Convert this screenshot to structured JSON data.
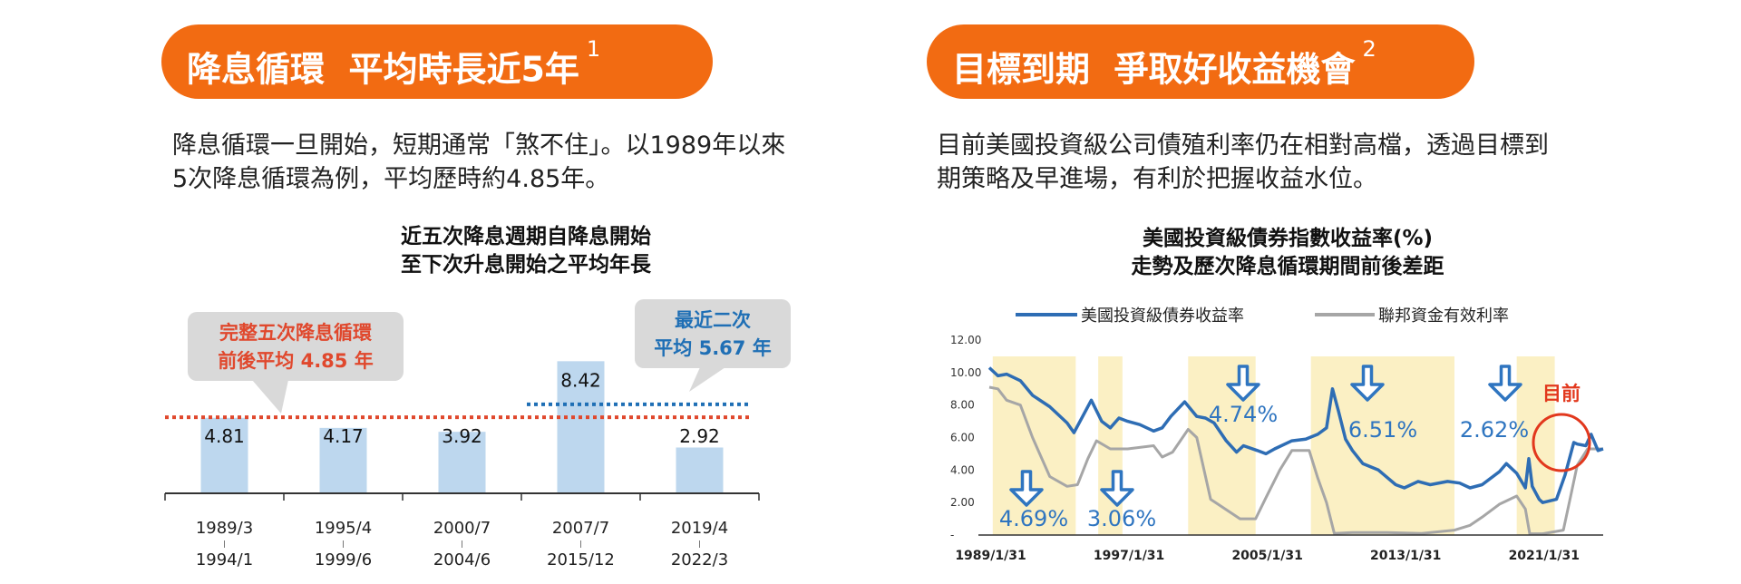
{
  "left": {
    "header_title": "降息循環  平均時長近5年",
    "header_footnote": "1",
    "paragraph_line1": "降息循環一旦開始，短期通常「煞不住」。以1989年以來",
    "paragraph_line2": "5次降息循環為例，平均歷時約4.85年。",
    "chart_title_line1": "近五次降息週期自降息開始",
    "chart_title_line2": "至下次升息開始之平均年長",
    "callout_left_line1": "完整五次降息循環",
    "callout_left_line2": "前後平均 4.85 年",
    "callout_right_line1": "最近二次",
    "callout_right_line2": "平均 5.67 年"
  },
  "right": {
    "header_title": "目標到期  爭取好收益機會",
    "header_footnote": "2",
    "paragraph_line1": "目前美國投資級公司債殖利率仍在相對高檔，透過目標到",
    "paragraph_line2": "期策略及早進場，有利於把握收益水位。",
    "chart_title_line1": "美國投資級債券指數收益率(%)",
    "chart_title_line2": "走勢及歷次降息循環期間前後差距",
    "now_label": "目前"
  },
  "colors": {
    "orange": "#f26b12",
    "bar": "#bdd7ee",
    "avg_red": "#e0482d",
    "avg_blue": "#1f6fb5",
    "ig_line": "#2e6db4",
    "ff_line": "#a6a6a6",
    "shade": "#fbf0c4",
    "arrow": "#2f75c0",
    "circle": "#e2381d"
  },
  "chart_data": [
    {
      "type": "bar",
      "title": "近五次降息週期自降息開始至下次升息開始之平均年長",
      "categories": [
        [
          "1989/3",
          "1994/1"
        ],
        [
          "1995/4",
          "1999/6"
        ],
        [
          "2000/7",
          "2004/6"
        ],
        [
          "2007/7",
          "2015/12"
        ],
        [
          "2019/4",
          "2022/3"
        ]
      ],
      "values": [
        4.81,
        4.17,
        3.92,
        8.42,
        2.92
      ],
      "value_labels": [
        "4.81",
        "4.17",
        "3.92",
        "8.42",
        "2.92"
      ],
      "ylim": [
        0,
        10
      ],
      "reference_lines": [
        {
          "name": "完整五次降息循環前後平均",
          "value": 4.85,
          "span": "all"
        },
        {
          "name": "最近二次平均",
          "value": 5.67,
          "span": "last-two"
        }
      ]
    },
    {
      "type": "line",
      "title": "美國投資級債券指數收益率(%)走勢及歷次降息循環期間前後差距",
      "legend_position": "top",
      "y_ticks": [
        "12.00",
        "10.00",
        "8.00",
        "6.00",
        "4.00",
        "2.00",
        "-"
      ],
      "ylim": [
        0,
        12
      ],
      "x_ticks": [
        "1989/1/31",
        "1997/1/31",
        "2005/1/31",
        "2013/1/31",
        "2021/1/31"
      ],
      "xlim": [
        1989.0,
        2024.5
      ],
      "series": [
        {
          "name": "美國投資級債券收益率",
          "x": [
            1989.0,
            1989.5,
            1990.0,
            1990.8,
            1991.5,
            1992.5,
            1993.5,
            1993.9,
            1994.5,
            1994.9,
            1995.5,
            1996.0,
            1996.5,
            1997.0,
            1997.7,
            1998.5,
            1999.0,
            1999.5,
            2000.3,
            2001.0,
            2001.5,
            2002.0,
            2002.7,
            2003.3,
            2003.7,
            2004.5,
            2005.0,
            2005.5,
            2006.5,
            2007.3,
            2008.0,
            2008.5,
            2008.85,
            2009.2,
            2009.6,
            2010.0,
            2010.6,
            2011.5,
            2012.5,
            2013.0,
            2013.8,
            2014.5,
            2015.5,
            2016.2,
            2016.8,
            2017.5,
            2018.5,
            2018.9,
            2019.5,
            2020.0,
            2020.2,
            2020.4,
            2020.8,
            2021.0,
            2021.8,
            2022.3,
            2022.8,
            2023.0,
            2023.5,
            2023.8,
            2024.2,
            2024.5
          ],
          "y": [
            10.3,
            9.8,
            9.9,
            9.5,
            8.6,
            7.9,
            6.9,
            6.3,
            7.5,
            8.3,
            7.0,
            6.6,
            7.2,
            7.0,
            6.8,
            6.4,
            6.6,
            7.3,
            8.2,
            7.3,
            7.2,
            6.9,
            5.8,
            5.1,
            5.5,
            5.2,
            5.0,
            5.3,
            5.8,
            5.9,
            6.2,
            6.6,
            9.0,
            7.6,
            5.9,
            5.2,
            4.4,
            4.0,
            3.1,
            2.9,
            3.3,
            3.1,
            3.3,
            3.2,
            2.9,
            3.1,
            3.9,
            4.4,
            3.8,
            2.9,
            4.7,
            3.0,
            2.2,
            2.0,
            2.2,
            3.7,
            5.7,
            5.6,
            5.5,
            6.2,
            5.2,
            5.3
          ]
        },
        {
          "name": "聯邦資金有效利率",
          "x": [
            1989.0,
            1989.5,
            1990.0,
            1990.8,
            1991.5,
            1992.5,
            1993.5,
            1994.1,
            1994.7,
            1995.2,
            1996.0,
            1997.0,
            1998.5,
            1999.0,
            1999.6,
            2000.5,
            2001.0,
            2001.8,
            2002.5,
            2003.5,
            2004.4,
            2005.0,
            2005.8,
            2006.5,
            2007.5,
            2008.0,
            2008.5,
            2008.95,
            2010.0,
            2012.0,
            2014.0,
            2015.9,
            2016.8,
            2017.5,
            2018.5,
            2019.5,
            2020.0,
            2020.25,
            2021.0,
            2022.2,
            2022.6,
            2023.0,
            2023.6,
            2024.5
          ],
          "y": [
            9.1,
            9.0,
            8.3,
            8.0,
            6.0,
            3.6,
            3.0,
            3.1,
            4.7,
            5.8,
            5.3,
            5.3,
            5.5,
            4.8,
            5.1,
            6.5,
            6.0,
            2.2,
            1.7,
            1.0,
            1.0,
            2.3,
            4.0,
            5.2,
            5.2,
            3.5,
            2.0,
            0.1,
            0.15,
            0.15,
            0.1,
            0.3,
            0.6,
            1.1,
            1.9,
            2.4,
            1.6,
            0.08,
            0.08,
            0.3,
            2.3,
            4.3,
            5.3,
            5.3
          ]
        }
      ],
      "shaded_periods": [
        [
          1989.2,
          1994.0
        ],
        [
          1995.3,
          1996.7
        ],
        [
          2000.5,
          2004.4
        ],
        [
          2007.6,
          2015.9
        ],
        [
          2019.5,
          2021.7
        ]
      ],
      "annotations": [
        {
          "label": "4.69%",
          "period": 0
        },
        {
          "label": "3.06%",
          "period": 1
        },
        {
          "label": "4.74%",
          "period": 2
        },
        {
          "label": "6.51%",
          "period": 3
        },
        {
          "label": "2.62%",
          "period": 4
        }
      ]
    }
  ]
}
